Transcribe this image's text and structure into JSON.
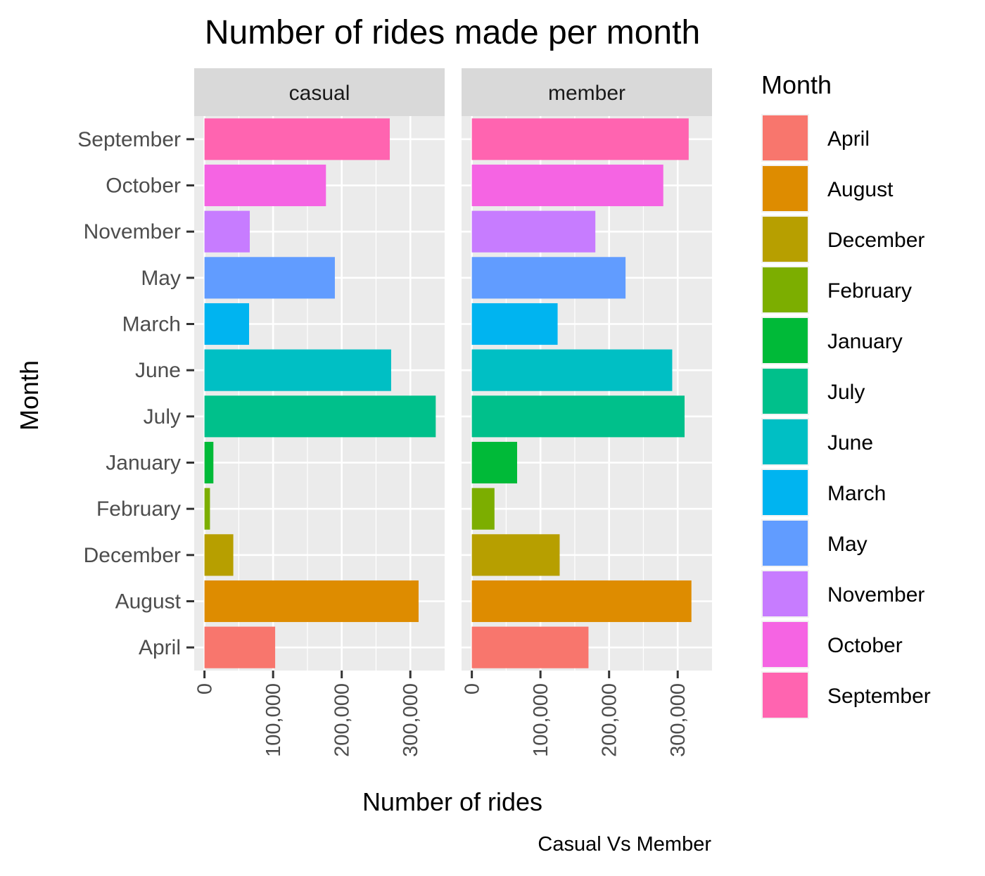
{
  "chart_data": {
    "type": "bar",
    "orientation": "horizontal",
    "title": "Number of rides made per month",
    "xlabel": "Number of rides",
    "ylabel": "Month",
    "caption": "Casual Vs Member",
    "legend_title": "Month",
    "legend_position": "right",
    "grid": true,
    "xlim": [
      -15000,
      350000
    ],
    "x_ticks": [
      0,
      100000,
      200000,
      300000
    ],
    "x_tick_labels": [
      "0",
      "100,000",
      "200,000",
      "300,000"
    ],
    "categories": [
      "April",
      "August",
      "December",
      "February",
      "January",
      "July",
      "June",
      "March",
      "May",
      "November",
      "October",
      "September"
    ],
    "colors": {
      "April": "#F8766D",
      "August": "#DE8C00",
      "December": "#B79F00",
      "February": "#7CAE00",
      "January": "#00BA38",
      "July": "#00C08B",
      "June": "#00BFC4",
      "March": "#00B4F0",
      "May": "#619CFF",
      "November": "#C77CFF",
      "October": "#F564E3",
      "September": "#FF64B0"
    },
    "panels": [
      {
        "name": "casual",
        "values": [
          103000,
          312000,
          42000,
          8000,
          13000,
          337000,
          272000,
          65000,
          190000,
          66000,
          177000,
          270000
        ]
      },
      {
        "name": "member",
        "values": [
          170000,
          320000,
          128000,
          33000,
          66000,
          310000,
          292000,
          125000,
          224000,
          180000,
          279000,
          316000
        ]
      }
    ]
  }
}
